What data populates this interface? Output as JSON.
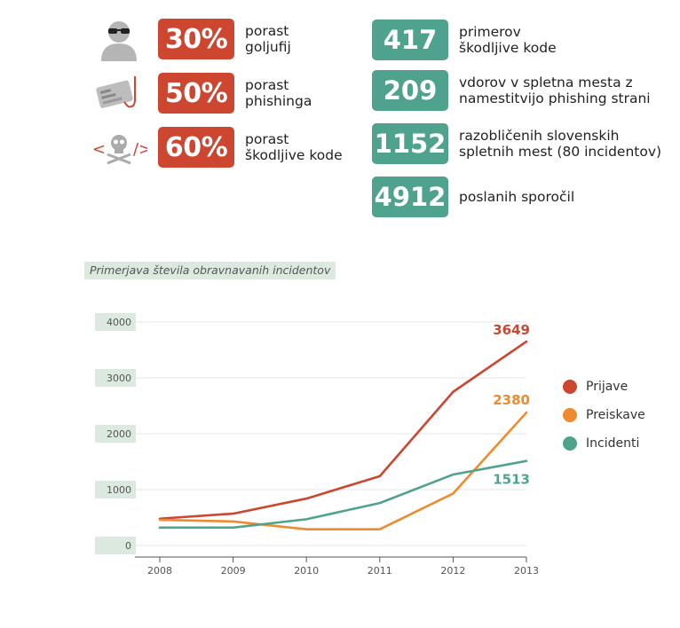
{
  "stats_left": [
    {
      "icon": "hacker-icon",
      "value": "30%",
      "label_lines": [
        "porast",
        "goljufij"
      ]
    },
    {
      "icon": "phishing-card-icon",
      "value": "50%",
      "label_lines": [
        "porast",
        "phishinga"
      ]
    },
    {
      "icon": "skull-code-icon",
      "value": "60%",
      "label_lines": [
        "porast",
        "škodljive kode"
      ]
    }
  ],
  "stats_right": [
    {
      "value": "417",
      "label_lines": [
        "primerov",
        "škodljive kode"
      ]
    },
    {
      "value": "209",
      "label_lines": [
        "vdorov v spletna mesta z",
        "namestitvijo phishing strani"
      ]
    },
    {
      "value": "1152",
      "label_lines": [
        "razobličenih slovenskih",
        "spletnih mest (80 incidentov)"
      ]
    },
    {
      "value": "4912",
      "label_lines": [
        "poslanih sporočil"
      ]
    }
  ],
  "colors": {
    "red": "#cc4630",
    "teal": "#4fa38e",
    "orange": "#f08a2e"
  },
  "chart_data": {
    "type": "line",
    "title": "Primerjava števila obravnavanih incidentov",
    "x": [
      "2008",
      "2009",
      "2010",
      "2011",
      "2012",
      "2013"
    ],
    "yticks": [
      "0",
      "1000",
      "2000",
      "3000",
      "4000"
    ],
    "ylim": [
      0,
      4000
    ],
    "grid": true,
    "legend_position": "right",
    "series": [
      {
        "name": "Prijave",
        "color": "#cc4630",
        "values": [
          480,
          570,
          840,
          1240,
          2750,
          3649
        ],
        "end_label": "3649"
      },
      {
        "name": "Preiskave",
        "color": "#f08a2e",
        "values": [
          460,
          430,
          290,
          290,
          930,
          2380
        ],
        "end_label": "2380"
      },
      {
        "name": "Incidenti",
        "color": "#4fa38e",
        "values": [
          320,
          320,
          470,
          760,
          1270,
          1513
        ],
        "end_label": "1513"
      }
    ]
  }
}
